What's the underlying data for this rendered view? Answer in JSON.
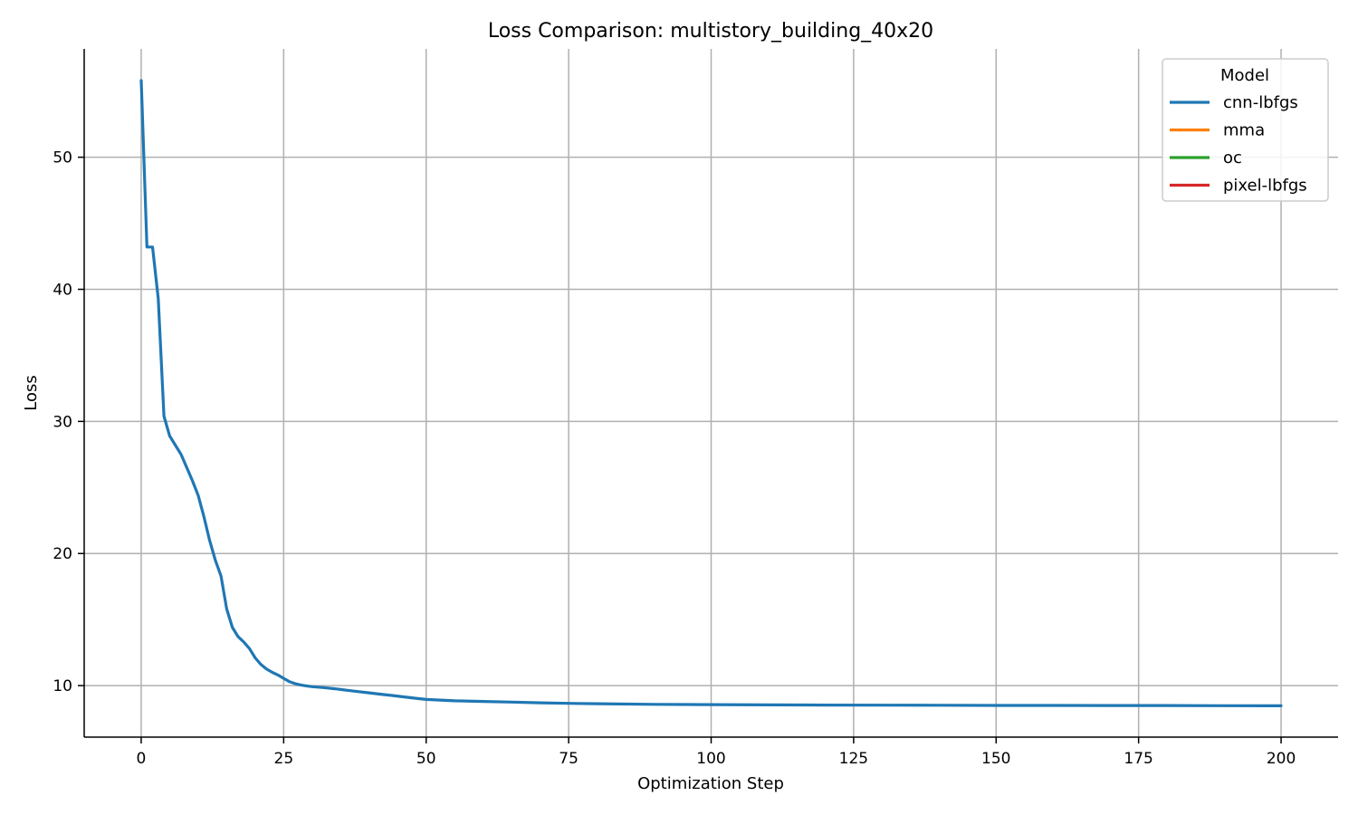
{
  "chart_data": {
    "type": "line",
    "title": "Loss Comparison: multistory_building_40x20",
    "xlabel": "Optimization Step",
    "ylabel": "Loss",
    "xlim": [
      -10,
      210
    ],
    "ylim": [
      6.1,
      58.2
    ],
    "xticks": [
      0,
      25,
      50,
      75,
      100,
      125,
      150,
      175,
      200
    ],
    "yticks": [
      10,
      20,
      30,
      40,
      50
    ],
    "grid": true,
    "legend": {
      "title": "Model",
      "placement": "top-right",
      "entries": [
        {
          "name": "cnn-lbfgs",
          "color": "#1f77b4"
        },
        {
          "name": "mma",
          "color": "#ff7f0e"
        },
        {
          "name": "oc",
          "color": "#2ca02c"
        },
        {
          "name": "pixel-lbfgs",
          "color": "#d62728"
        }
      ]
    },
    "series": [
      {
        "name": "cnn-lbfgs",
        "color": "#1f77b4",
        "x": [
          0,
          1,
          2,
          3,
          4,
          5,
          6,
          7,
          8,
          9,
          10,
          11,
          12,
          13,
          14,
          15,
          16,
          17,
          18,
          19,
          20,
          21,
          22,
          23,
          24,
          25,
          26,
          27,
          28,
          29,
          30,
          32,
          34,
          36,
          38,
          40,
          42,
          44,
          46,
          48,
          50,
          55,
          60,
          65,
          70,
          75,
          80,
          90,
          100,
          110,
          120,
          130,
          140,
          150,
          160,
          170,
          180,
          190,
          200
        ],
        "y": [
          55.8,
          43.2,
          43.2,
          39.3,
          30.4,
          28.9,
          28.2,
          27.5,
          26.5,
          25.5,
          24.4,
          22.8,
          21.0,
          19.5,
          18.3,
          15.8,
          14.4,
          13.7,
          13.3,
          12.8,
          12.1,
          11.6,
          11.25,
          11.0,
          10.8,
          10.55,
          10.3,
          10.15,
          10.05,
          9.98,
          9.92,
          9.85,
          9.76,
          9.65,
          9.55,
          9.45,
          9.35,
          9.25,
          9.15,
          9.05,
          8.95,
          8.85,
          8.8,
          8.75,
          8.7,
          8.66,
          8.63,
          8.58,
          8.56,
          8.54,
          8.53,
          8.52,
          8.51,
          8.5,
          8.5,
          8.49,
          8.49,
          8.48,
          8.47
        ]
      },
      {
        "name": "mma",
        "color": "#ff7f0e",
        "x": [],
        "y": []
      },
      {
        "name": "oc",
        "color": "#2ca02c",
        "x": [],
        "y": []
      },
      {
        "name": "pixel-lbfgs",
        "color": "#d62728",
        "x": [],
        "y": []
      }
    ]
  }
}
